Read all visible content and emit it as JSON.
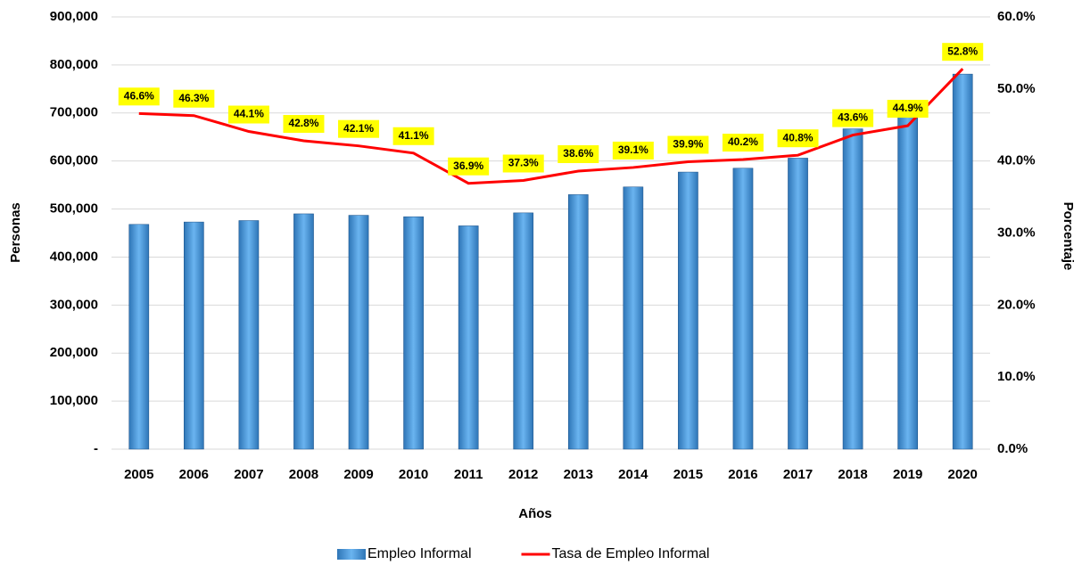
{
  "chart_data": {
    "type": "bar",
    "y_label": "Personas",
    "y2_label": "Porcentaje",
    "x_label": "Años",
    "categories": [
      "2005",
      "2006",
      "2007",
      "2008",
      "2009",
      "2010",
      "2011",
      "2012",
      "2013",
      "2014",
      "2015",
      "2016",
      "2017",
      "2018",
      "2019",
      "2020"
    ],
    "series": [
      {
        "name": "Empleo Informal",
        "type": "bar",
        "color": "#2e75b6",
        "values": [
          468000,
          473000,
          476000,
          490000,
          487000,
          484000,
          465000,
          492000,
          530000,
          546000,
          577000,
          585000,
          606000,
          667000,
          694000,
          781000
        ]
      },
      {
        "name": "Tasa de Empleo Informal",
        "type": "line",
        "axis": "y2",
        "color": "#ff0000",
        "values": [
          46.6,
          46.3,
          44.1,
          42.8,
          42.1,
          41.1,
          36.9,
          37.3,
          38.6,
          39.1,
          39.9,
          40.2,
          40.8,
          43.6,
          44.9,
          52.8
        ],
        "value_labels": [
          "46.6%",
          "46.3%",
          "44.1%",
          "42.8%",
          "42.1%",
          "41.1%",
          "36.9%",
          "37.3%",
          "38.6%",
          "39.1%",
          "39.9%",
          "40.2%",
          "40.8%",
          "43.6%",
          "44.9%",
          "52.8%"
        ],
        "value_label_background": "#ffff00"
      }
    ],
    "ylim": [
      0,
      900000
    ],
    "yticks": [
      {
        "value": 0,
        "label": "-"
      },
      {
        "value": 100000,
        "label": "100,000"
      },
      {
        "value": 200000,
        "label": "200,000"
      },
      {
        "value": 300000,
        "label": "300,000"
      },
      {
        "value": 400000,
        "label": "400,000"
      },
      {
        "value": 500000,
        "label": "500,000"
      },
      {
        "value": 600000,
        "label": "600,000"
      },
      {
        "value": 700000,
        "label": "700,000"
      },
      {
        "value": 800000,
        "label": "800,000"
      },
      {
        "value": 900000,
        "label": "900,000"
      }
    ],
    "y2lim": [
      0,
      60
    ],
    "y2ticks": [
      {
        "value": 0,
        "label": "0.0%"
      },
      {
        "value": 10,
        "label": "10.0%"
      },
      {
        "value": 20,
        "label": "20.0%"
      },
      {
        "value": 30,
        "label": "30.0%"
      },
      {
        "value": 40,
        "label": "40.0%"
      },
      {
        "value": 50,
        "label": "50.0%"
      },
      {
        "value": 60,
        "label": "60.0%"
      }
    ],
    "grid": true,
    "legend": "bottom"
  }
}
